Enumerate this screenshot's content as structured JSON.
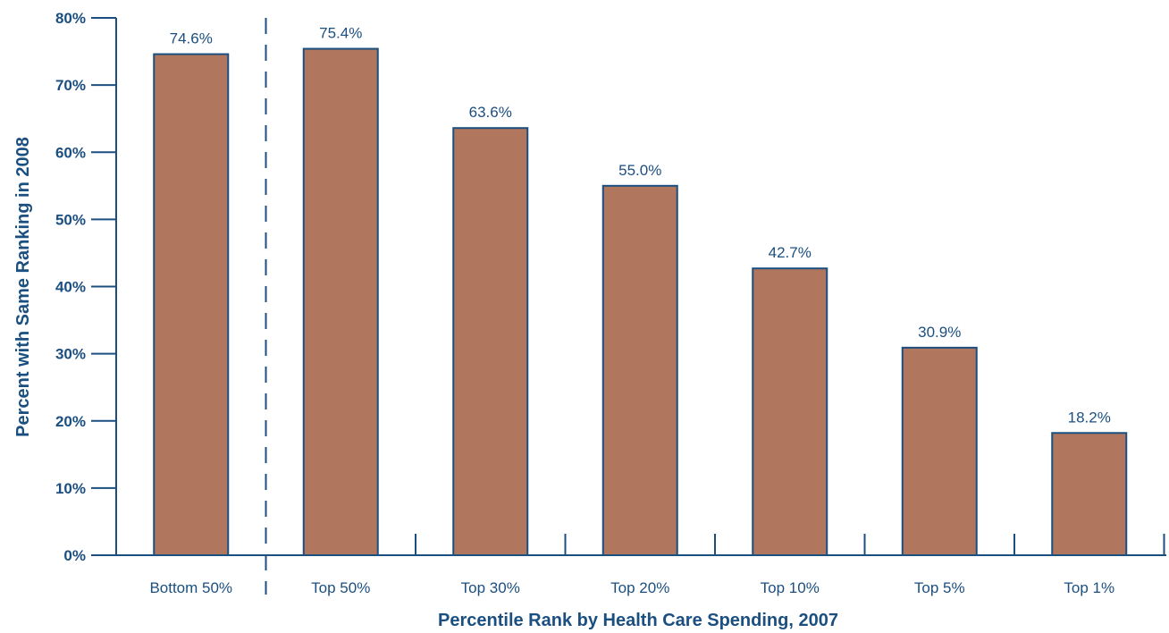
{
  "chart_data": {
    "type": "bar",
    "xlabel": "Percentile Rank by Health Care Spending, 2007",
    "ylabel": "Percent with Same Ranking in 2008",
    "categories": [
      "Bottom 50%",
      "Top 50%",
      "Top 30%",
      "Top 20%",
      "Top 10%",
      "Top 5%",
      "Top 1%"
    ],
    "values": [
      74.6,
      75.4,
      63.6,
      55.0,
      42.7,
      30.9,
      18.2
    ],
    "data_labels": [
      "74.6%",
      "75.4%",
      "63.6%",
      "55.0%",
      "42.7%",
      "30.9%",
      "18.2%"
    ],
    "ylim": [
      0,
      80
    ],
    "yticks": [
      0,
      10,
      20,
      30,
      40,
      50,
      60,
      70,
      80
    ],
    "ytick_labels": [
      "0%",
      "10%",
      "20%",
      "30%",
      "40%",
      "50%",
      "60%",
      "70%",
      "80%"
    ],
    "grid": false,
    "legend": "none",
    "divider_after_category": "Bottom 50%",
    "colors": {
      "bar_fill": "#b0775e",
      "bar_stroke": "#1b4f80",
      "axis": "#1b4f80",
      "text": "#1b4f80"
    }
  }
}
